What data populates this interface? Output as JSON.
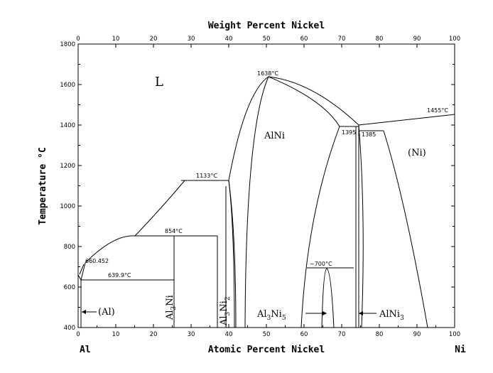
{
  "chart_data": {
    "type": "phase-diagram",
    "title_top": "Weight Percent Nickel",
    "xlabel": "Atomic Percent Nickel",
    "ylabel": "Temperature °C",
    "x_left_label": "Al",
    "x_right_label": "Ni",
    "x_ticks": [
      "0",
      "10",
      "20",
      "30",
      "40",
      "50",
      "60",
      "70",
      "80",
      "90",
      "100"
    ],
    "x_ticks_top": [
      "0",
      "10",
      "20",
      "30",
      "40",
      "50",
      "60",
      "70",
      "80",
      "90",
      "100"
    ],
    "y_ticks": [
      "400",
      "600",
      "800",
      "1000",
      "1200",
      "1400",
      "1600",
      "1800"
    ],
    "xlim": [
      0,
      100
    ],
    "ylim": [
      400,
      1800
    ],
    "phase_labels": {
      "L": "L",
      "AlNi": "AlNi",
      "Ni": "(Ni)",
      "Al": "(Al)",
      "Al3Ni": "Al",
      "Al3Ni_sub": "3",
      "Al3Ni_tail": "Ni",
      "Al3Ni2": "Al",
      "Al3Ni2_sub": "3",
      "Al3Ni2_mid": "Ni",
      "Al3Ni2_sub2": "2",
      "Al3Ni5": "Al",
      "Al3Ni5_sub": "3",
      "Al3Ni5_mid": "Ni",
      "Al3Ni5_sub2": "5",
      "AlNi3": "AlNi",
      "AlNi3_sub": "3"
    },
    "temperature_labels": {
      "max": "1638°C",
      "peritectic_1133": "1133°C",
      "peritectic_854": "854°C",
      "eutectic_639": "639.9°C",
      "al_melt": "660.452",
      "t1395": "1395",
      "t1385": "1385",
      "ni_melt": "1455°C",
      "t700": "~700°C"
    }
  }
}
